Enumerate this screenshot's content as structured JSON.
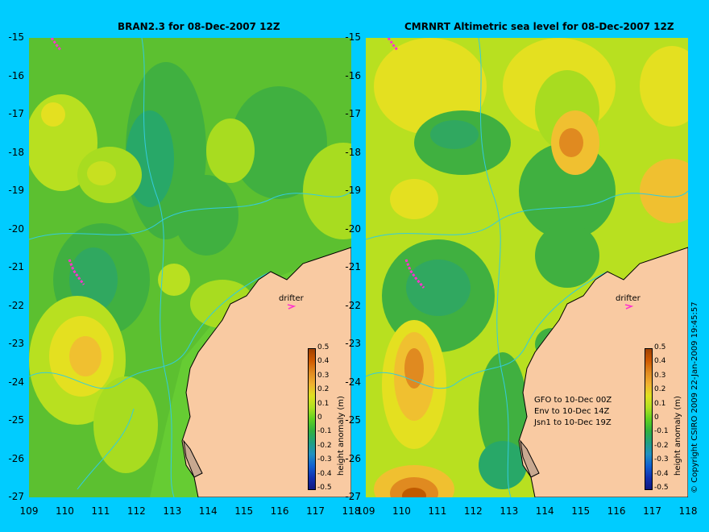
{
  "titles": {
    "left": "BRAN2.3 for 08-Dec-2007 12Z",
    "right": "CMRNRT Altimetric sea level  for 08-Dec-2007 12Z"
  },
  "axes": {
    "y_ticks": [
      "-15",
      "-16",
      "-17",
      "-18",
      "-19",
      "-20",
      "-21",
      "-22",
      "-23",
      "-24",
      "-25",
      "-26",
      "-27"
    ],
    "x_ticks_left": [
      "109",
      "110",
      "111",
      "112",
      "113",
      "114",
      "115",
      "116",
      "117",
      "118"
    ],
    "x_ticks_right": [
      "109",
      "110",
      "111",
      "112",
      "113",
      "114",
      "115",
      "116",
      "117",
      "118"
    ],
    "lon_range": [
      109,
      118
    ],
    "lat_range": [
      -27,
      -15
    ]
  },
  "labels": {
    "drifter_left": "drifter",
    "drifter_right": "drifter",
    "satellites": [
      "GFO to 10-Dec 00Z",
      "Env to 10-Dec 14Z",
      "Jsn1 to 10-Dec 19Z"
    ],
    "colorbar_title": "height anomaly (m)",
    "copyright": "© Copyright CSIRO 2009   22-Jan-2009 19:45:57"
  },
  "colorbar": {
    "ticks": [
      "0.5",
      "0.4",
      "0.3",
      "0.2",
      "0.1",
      "0",
      "-0.1",
      "-0.2",
      "-0.3",
      "-0.4",
      "-0.5"
    ],
    "colors": [
      "#a04000",
      "#d05a00",
      "#e08a20",
      "#f0b030",
      "#e0e020",
      "#b0e020",
      "#60d020",
      "#30b040",
      "#20a080",
      "#2090c0",
      "#1060d0",
      "#1030b0",
      "#101880"
    ]
  },
  "colors": {
    "land": "#f9caa2",
    "land_dark": "#c8a890",
    "coast_line": "#000000",
    "contour_line": "#33ccdd",
    "drifter_track": "#ff33cc",
    "background": "#00ccff"
  }
}
